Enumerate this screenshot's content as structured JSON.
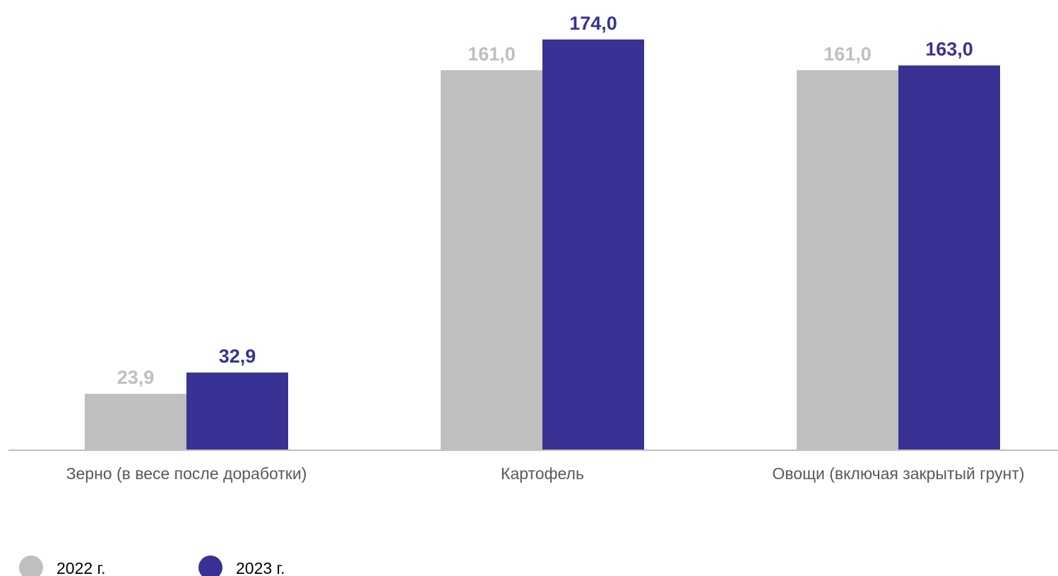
{
  "chart_data": {
    "type": "bar",
    "title": "",
    "xlabel": "",
    "ylabel": "",
    "categories": [
      "Зерно (в весе после доработки)",
      "Картофель",
      "Овощи (включая закрытый грунт)"
    ],
    "series": [
      {
        "name": "2022 г.",
        "color": "#bfbfbf",
        "values": [
          23.9,
          161.0,
          161.0
        ],
        "labels": [
          "23,9",
          "161,0",
          "161,0"
        ]
      },
      {
        "name": "2023 г.",
        "color": "#373293",
        "values": [
          32.9,
          174.0,
          163.0
        ],
        "labels": [
          "32,9",
          "174,0",
          "163,0"
        ]
      }
    ],
    "ylim": [
      0,
      180
    ],
    "grid": false,
    "legend_position": "bottom-left",
    "colors": {
      "axis": "#bfbfbf",
      "category_text": "#595959",
      "legend_text": "#000000"
    }
  }
}
